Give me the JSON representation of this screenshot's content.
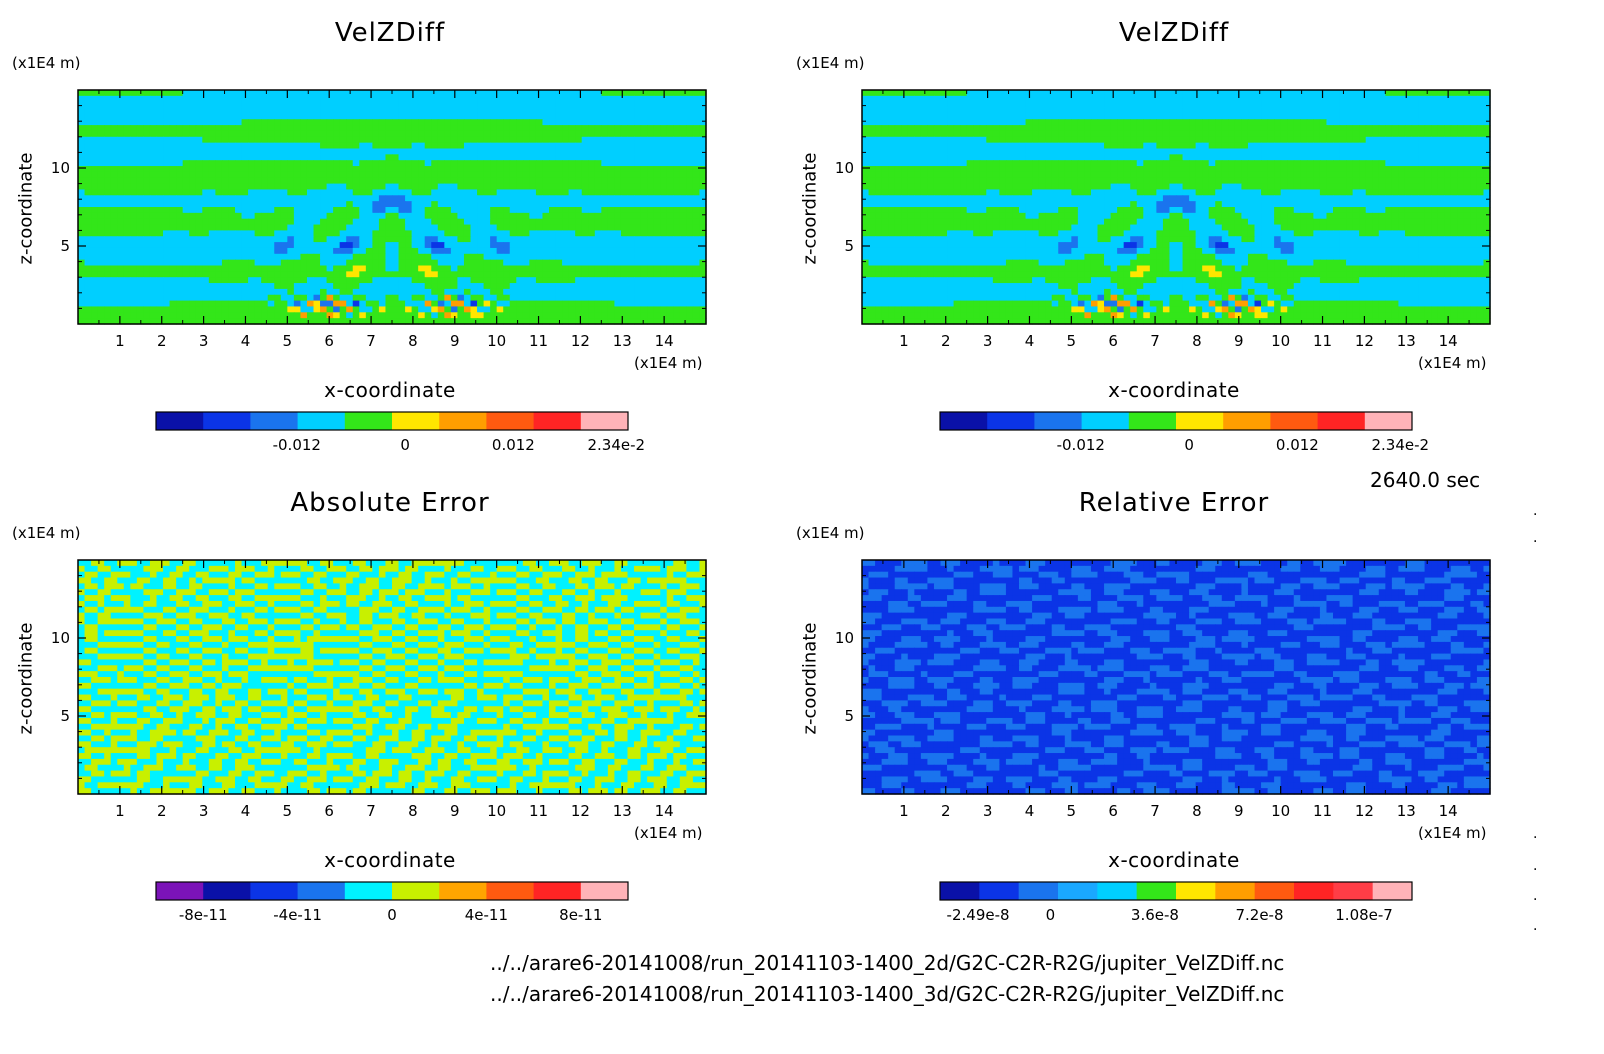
{
  "time_label": "2640.0 sec",
  "files": [
    "../../arare6-20141008/run_20141103-1400_2d/G2C-C2R-R2G/jupiter_VelZDiff.nc",
    "../../arare6-20141008/run_20141103-1400_3d/G2C-C2R-R2G/jupiter_VelZDiff.nc"
  ],
  "colors": {
    "velz": [
      "#0a11a8",
      "#0b34e6",
      "#1a74ee",
      "#00cfff",
      "#33e619",
      "#ffe600",
      "#ff9e00",
      "#ff5a10",
      "#ff2424",
      "#ffb3b8"
    ],
    "abs": [
      "#7b13b8",
      "#0a11a8",
      "#0b34e6",
      "#1a74ee",
      "#00f2ff",
      "#c8f000",
      "#ffa500",
      "#ff5a10",
      "#ff2424",
      "#ffb3b8"
    ],
    "rel": [
      "#0a11a8",
      "#0b34e6",
      "#1a74ee",
      "#1aa8ff",
      "#00cfff",
      "#33e619",
      "#ffe600",
      "#ff9e00",
      "#ff5a10",
      "#ff2424",
      "#ff3d46",
      "#ffb3b8"
    ]
  },
  "chart_data": [
    {
      "type": "heatmap",
      "title": "VelZDiff",
      "xlabel": "x-coordinate",
      "ylabel": "z-coordinate",
      "x_unit": "(x1E4 m)",
      "y_unit": "(x1E4 m)",
      "xlim": [
        0,
        15
      ],
      "ylim": [
        0,
        15
      ],
      "x_ticks": [
        "1",
        "2",
        "3",
        "4",
        "5",
        "6",
        "7",
        "8",
        "9",
        "10",
        "11",
        "12",
        "13",
        "14"
      ],
      "y_ticks": [
        "5",
        "10"
      ],
      "colorbar": {
        "ticks": [
          "-0.012",
          "0",
          "0.012",
          "2.34e-2"
        ],
        "values": [
          -0.012,
          0,
          0.012,
          0.0234
        ]
      },
      "pattern": "wave"
    },
    {
      "type": "heatmap",
      "title": "VelZDiff",
      "xlabel": "x-coordinate",
      "ylabel": "z-coordinate",
      "x_unit": "(x1E4 m)",
      "y_unit": "(x1E4 m)",
      "xlim": [
        0,
        15
      ],
      "ylim": [
        0,
        15
      ],
      "x_ticks": [
        "1",
        "2",
        "3",
        "4",
        "5",
        "6",
        "7",
        "8",
        "9",
        "10",
        "11",
        "12",
        "13",
        "14"
      ],
      "y_ticks": [
        "5",
        "10"
      ],
      "colorbar": {
        "ticks": [
          "-0.012",
          "0",
          "0.012",
          "2.34e-2"
        ],
        "values": [
          -0.012,
          0,
          0.012,
          0.0234
        ]
      },
      "pattern": "wave"
    },
    {
      "type": "heatmap",
      "title": "Absolute Error",
      "xlabel": "x-coordinate",
      "ylabel": "z-coordinate",
      "x_unit": "(x1E4 m)",
      "y_unit": "(x1E4 m)",
      "xlim": [
        0,
        15
      ],
      "ylim": [
        0,
        15
      ],
      "x_ticks": [
        "1",
        "2",
        "3",
        "4",
        "5",
        "6",
        "7",
        "8",
        "9",
        "10",
        "11",
        "12",
        "13",
        "14"
      ],
      "y_ticks": [
        "5",
        "10"
      ],
      "colorbar": {
        "ticks": [
          "-8e-11",
          "-4e-11",
          "0",
          "4e-11",
          "8e-11"
        ],
        "values": [
          -8e-11,
          -4e-11,
          0,
          4e-11,
          8e-11
        ]
      },
      "pattern": "noise-abs"
    },
    {
      "type": "heatmap",
      "title": "Relative Error",
      "xlabel": "x-coordinate",
      "ylabel": "z-coordinate",
      "x_unit": "(x1E4 m)",
      "y_unit": "(x1E4 m)",
      "xlim": [
        0,
        15
      ],
      "ylim": [
        0,
        15
      ],
      "x_ticks": [
        "1",
        "2",
        "3",
        "4",
        "5",
        "6",
        "7",
        "8",
        "9",
        "10",
        "11",
        "12",
        "13",
        "14"
      ],
      "y_ticks": [
        "5",
        "10"
      ],
      "colorbar": {
        "ticks": [
          "-2.49e-8",
          "0",
          "3.6e-8",
          "7.2e-8",
          "1.08e-7"
        ],
        "values": [
          -2.49e-08,
          0,
          3.6e-08,
          7.2e-08,
          1.08e-07
        ]
      },
      "pattern": "noise-rel"
    }
  ]
}
